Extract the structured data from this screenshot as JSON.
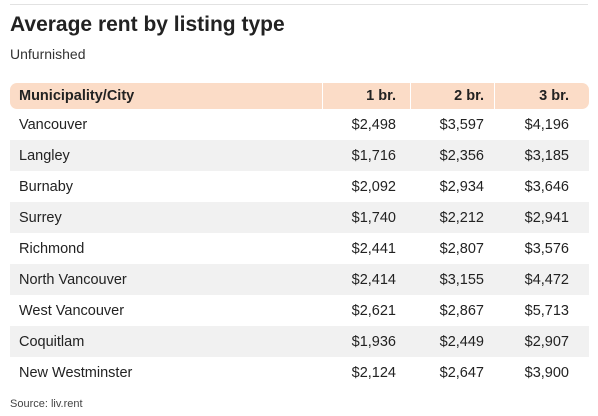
{
  "title": "Average rent by listing type",
  "subtitle": "Unfurnished",
  "source": "Source: liv.rent",
  "chart_data": {
    "type": "table",
    "title": "Average rent by listing type",
    "subtitle": "Unfurnished",
    "columns": [
      "Municipality/City",
      "1 br.",
      "2 br.",
      "3 br."
    ],
    "rows": [
      [
        "Vancouver",
        "$2,498",
        "$3,597",
        "$4,196"
      ],
      [
        "Langley",
        "$1,716",
        "$2,356",
        "$3,185"
      ],
      [
        "Burnaby",
        "$2,092",
        "$2,934",
        "$3,646"
      ],
      [
        "Surrey",
        "$1,740",
        "$2,212",
        "$2,941"
      ],
      [
        "Richmond",
        "$2,441",
        "$2,807",
        "$3,576"
      ],
      [
        "North Vancouver",
        "$2,414",
        "$3,155",
        "$4,472"
      ],
      [
        "West Vancouver",
        "$2,621",
        "$2,867",
        "$5,713"
      ],
      [
        "Coquitlam",
        "$1,936",
        "$2,449",
        "$2,907"
      ],
      [
        "New Westminster",
        "$2,124",
        "$2,647",
        "$3,900"
      ]
    ],
    "colors": {
      "header_bg": "#fbdcc7",
      "stripe_bg": "#f1f1f1"
    }
  }
}
